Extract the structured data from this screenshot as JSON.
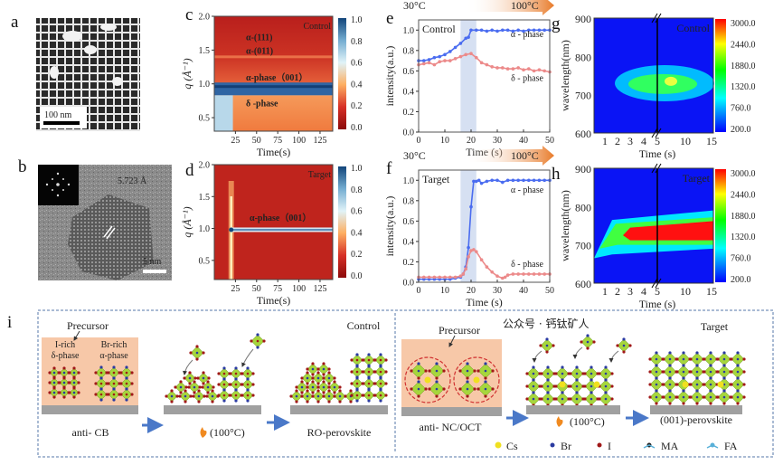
{
  "panel_labels": {
    "a": "a",
    "b": "b",
    "c": "c",
    "d": "d",
    "e": "e",
    "f": "f",
    "g": "g",
    "h": "h",
    "i": "i"
  },
  "panel_a": {
    "scale_bar": "100 nm"
  },
  "panel_b": {
    "lattice_spacing": "5.723 Å",
    "scale_bar": "5 nm"
  },
  "temperature": {
    "start": "30°C",
    "end": "100°C"
  },
  "chart_data": [
    {
      "id": "c",
      "type": "heatmap",
      "label": "Control",
      "xlabel": "Time(s)",
      "ylabel": "q (Å⁻¹)",
      "xlim": [
        0,
        140
      ],
      "ylim": [
        0.3,
        2.0
      ],
      "xticks": [
        25,
        50,
        75,
        100,
        125
      ],
      "yticks": [
        0.5,
        1.0,
        1.5,
        2.0
      ],
      "ytick_labels": [
        "0.5",
        "1.0",
        "1.5",
        "2.0"
      ],
      "colorbar": {
        "ticks": [
          "0.0",
          "0.2",
          "0.4",
          "0.6",
          "0.8",
          "1.0"
        ],
        "colors": [
          "#8b0a0a",
          "#d73027",
          "#fdae61",
          "#e0f3f8",
          "#74add1",
          "#12457a"
        ]
      },
      "annotations": [
        "α-(111)",
        "α-(011)",
        "α-phase（001）",
        "δ -phase"
      ]
    },
    {
      "id": "d",
      "type": "heatmap",
      "label": "Target",
      "xlabel": "Time(s)",
      "ylabel": "q (Å⁻¹)",
      "xlim": [
        0,
        140
      ],
      "ylim": [
        0.2,
        2.0
      ],
      "xticks": [
        25,
        50,
        75,
        100,
        125
      ],
      "yticks": [
        0.5,
        1.0,
        1.5,
        2.0
      ],
      "ytick_labels": [
        "0.5",
        "1.0",
        "1.5",
        "2.0"
      ],
      "colorbar": {
        "ticks": [
          "0.0",
          "0.2",
          "0.4",
          "0.6",
          "0.8",
          "1.0"
        ],
        "colors": [
          "#8b0a0a",
          "#d73027",
          "#fdae61",
          "#e0f3f8",
          "#74add1",
          "#12457a"
        ]
      },
      "annotations": [
        "α-phase（001）"
      ]
    },
    {
      "id": "e",
      "type": "line",
      "label": "Control",
      "xlabel": "Time (s)",
      "ylabel": "intensity(a.u.)",
      "xlim": [
        0,
        50
      ],
      "ylim": [
        0,
        1.1
      ],
      "xticks": [
        0,
        10,
        20,
        30,
        40,
        50
      ],
      "yticks": [
        0,
        0.2,
        0.4,
        0.6,
        0.8,
        1.0
      ],
      "ytick_labels": [
        "0.0",
        "0.2",
        "0.4",
        "0.6",
        "0.8",
        "1.0"
      ],
      "shaded_x": [
        16,
        22
      ],
      "series": [
        {
          "name": "α - phase",
          "color": "#4a6cf0",
          "x": [
            0,
            2,
            4,
            6,
            8,
            10,
            12,
            14,
            16,
            18,
            19,
            20,
            22,
            24,
            26,
            28,
            30,
            32,
            34,
            36,
            38,
            40,
            42,
            44,
            46,
            48,
            50
          ],
          "y": [
            0.7,
            0.7,
            0.71,
            0.73,
            0.74,
            0.76,
            0.79,
            0.83,
            0.87,
            0.92,
            0.93,
            1.0,
            1.0,
            1.0,
            0.99,
            1.0,
            0.99,
            1.0,
            1.0,
            0.99,
            1.0,
            0.99,
            1.0,
            1.0,
            1.0,
            1.0,
            1.0
          ]
        },
        {
          "name": "δ - phase",
          "color": "#ec8a8a",
          "x": [
            0,
            2,
            4,
            6,
            8,
            10,
            12,
            14,
            16,
            18,
            20,
            22,
            24,
            26,
            28,
            30,
            32,
            34,
            36,
            38,
            40,
            42,
            44,
            46,
            48,
            50
          ],
          "y": [
            0.66,
            0.67,
            0.68,
            0.66,
            0.69,
            0.7,
            0.7,
            0.72,
            0.74,
            0.76,
            0.77,
            0.73,
            0.68,
            0.66,
            0.64,
            0.63,
            0.63,
            0.62,
            0.62,
            0.63,
            0.61,
            0.62,
            0.6,
            0.61,
            0.6,
            0.59
          ]
        }
      ]
    },
    {
      "id": "f",
      "type": "line",
      "label": "Target",
      "xlabel": "Time (s)",
      "ylabel": "intensity(a.u.)",
      "xlim": [
        0,
        50
      ],
      "ylim": [
        0,
        1.1
      ],
      "xticks": [
        0,
        10,
        20,
        30,
        40,
        50
      ],
      "yticks": [
        0,
        0.2,
        0.4,
        0.6,
        0.8,
        1.0
      ],
      "ytick_labels": [
        "0.0",
        "0.2",
        "0.4",
        "0.6",
        "0.8",
        "1.0"
      ],
      "shaded_x": [
        16,
        22
      ],
      "series": [
        {
          "name": "α - phase",
          "color": "#4a6cf0",
          "x": [
            0,
            2,
            4,
            6,
            8,
            10,
            12,
            14,
            16,
            17,
            18,
            19,
            20,
            21,
            22,
            23,
            24,
            26,
            28,
            30,
            32,
            34,
            36,
            38,
            40,
            42,
            44,
            46,
            48,
            50
          ],
          "y": [
            0.03,
            0.03,
            0.03,
            0.03,
            0.03,
            0.03,
            0.03,
            0.04,
            0.05,
            0.08,
            0.15,
            0.34,
            0.74,
            0.99,
            0.99,
            1.0,
            0.97,
            0.99,
            1.0,
            1.0,
            0.98,
            1.0,
            1.0,
            1.0,
            1.0,
            1.0,
            1.0,
            1.0,
            1.0,
            1.0
          ]
        },
        {
          "name": "δ - phase",
          "color": "#ec8a8a",
          "x": [
            0,
            2,
            4,
            6,
            8,
            10,
            12,
            14,
            16,
            17,
            18,
            19,
            20,
            21,
            22,
            24,
            26,
            28,
            30,
            32,
            33,
            34,
            36,
            38,
            40,
            42,
            44,
            46,
            48,
            50
          ],
          "y": [
            0.05,
            0.05,
            0.05,
            0.05,
            0.05,
            0.05,
            0.05,
            0.05,
            0.06,
            0.08,
            0.13,
            0.25,
            0.31,
            0.32,
            0.3,
            0.22,
            0.15,
            0.1,
            0.06,
            0.04,
            0.05,
            0.07,
            0.08,
            0.08,
            0.08,
            0.08,
            0.08,
            0.08,
            0.08,
            0.08
          ]
        }
      ]
    },
    {
      "id": "g",
      "type": "heatmap",
      "label": "Control",
      "xlabel": "Time (s)",
      "ylabel": "wavelength(nm)",
      "ylim": [
        600,
        900
      ],
      "yticks": [
        "600",
        "700",
        "800",
        "900"
      ],
      "xtick_labels": [
        "1",
        "2",
        "3",
        "4",
        "5",
        "10",
        "15"
      ],
      "axis_break_at": "5",
      "colorbar": {
        "ticks": [
          "200.0",
          "760.0",
          "1320.0",
          "1880.0",
          "2440.0",
          "3000.0"
        ],
        "colors": [
          "#0000ff",
          "#00ffff",
          "#00ff00",
          "#ffff00",
          "#ff0000"
        ]
      },
      "peak_wavelength_nm": 735
    },
    {
      "id": "h",
      "type": "heatmap",
      "label": "Target",
      "xlabel": "Time (s)",
      "ylabel": "wavelength(nm)",
      "ylim": [
        600,
        900
      ],
      "yticks": [
        "600",
        "700",
        "800",
        "900"
      ],
      "xtick_labels": [
        "1",
        "2",
        "3",
        "4",
        "5",
        "10",
        "15"
      ],
      "axis_break_at": "5",
      "colorbar": {
        "ticks": [
          "200.0",
          "760.0",
          "1320.0",
          "1880.0",
          "2440.0",
          "3000.0"
        ],
        "colors": [
          "#0000ff",
          "#00ffff",
          "#00ff00",
          "#ffff00",
          "#ff0000"
        ]
      },
      "peak_wavelength_nm": 735
    }
  ],
  "schematic": {
    "control": {
      "label": "Control",
      "precursor": "Precursor",
      "i_rich": "I-rich",
      "delta_phase": "δ-phase",
      "br_rich": "Br-rich",
      "alpha_phase": "α-phase",
      "step1": "anti- CB",
      "step2": "(100°C)",
      "step3": "RO-perovskite"
    },
    "target": {
      "label": "Target",
      "precursor": "Precursor",
      "step1": "anti- NC/OCT",
      "step2": "(100°C)",
      "step3": "(001)-perovskite"
    },
    "legend": [
      {
        "name": "Cs",
        "color": "#f0e020"
      },
      {
        "name": "Br",
        "color": "#2a3aa0"
      },
      {
        "name": "I",
        "color": "#a01818"
      },
      {
        "name": "MA",
        "color": "#222222"
      },
      {
        "name": "FA",
        "color": "#58b0d8"
      }
    ],
    "watermark": "公众号 · 钙钛矿人"
  }
}
